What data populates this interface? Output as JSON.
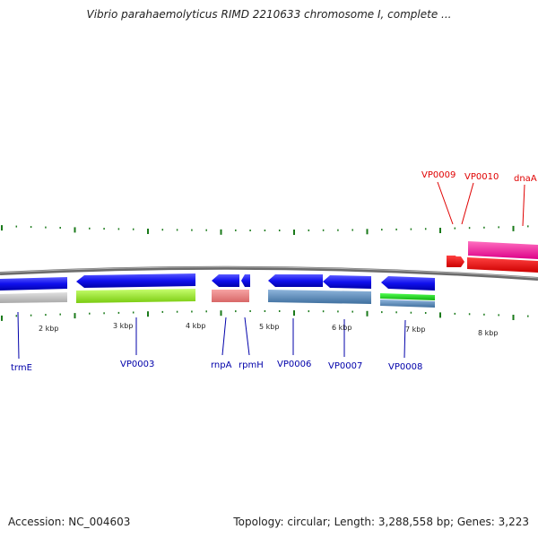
{
  "title": "Vibrio parahaemolyticus RIMD 2210633 chromosome I, complete ...",
  "footer": {
    "accession": "Accession: NC_004603",
    "summary": "Topology: circular; Length: 3,288,558 bp; Genes: 3,223"
  },
  "scale_labels": [
    "2 kbp",
    "3 kbp",
    "4 kbp",
    "5 kbp",
    "6 kbp",
    "7 kbp",
    "8 kbp"
  ],
  "genes_bottom": [
    {
      "name": "trmE"
    },
    {
      "name": "VP0003"
    },
    {
      "name": "rnpA"
    },
    {
      "name": "rpmH"
    },
    {
      "name": "VP0006"
    },
    {
      "name": "VP0007"
    },
    {
      "name": "VP0008"
    }
  ],
  "genes_top": [
    {
      "name": "VP0009"
    },
    {
      "name": "VP0010"
    },
    {
      "name": "dnaA"
    }
  ],
  "colors": {
    "forward_label": "#e00000",
    "reverse_label": "#0000aa",
    "tick": "#1a7a1a",
    "backbone": "#888888"
  }
}
